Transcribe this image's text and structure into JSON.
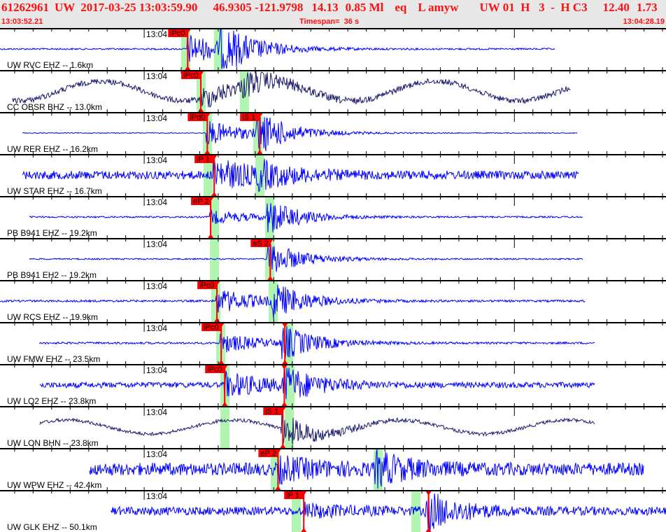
{
  "header": {
    "event_id": "61262961",
    "network": "UW",
    "origin_time": "2017-03-25 13:03:59.90",
    "lat_lon": "46.9305 -121.9798",
    "depth": "14.13",
    "magnitude": "0.85 Ml",
    "event_type": "eq",
    "location_flag": "L amyw",
    "solution": "UW 01  H   3  -  H C3",
    "value1": "12.40",
    "value2": "1.73",
    "start_time": "13:03:52.21",
    "timespan": "Timespan=  36 s",
    "end_time": "13:04:28.19"
  },
  "time_axis": {
    "start": "13:03:52.21",
    "end": "13:04:28.19",
    "major_label": "13:04"
  },
  "colors": {
    "header_text": "#ff1010",
    "trace_hf": "#0000ff",
    "trace_lp": "#1c1c6e",
    "pick": "#ff0000",
    "window": "#b0f5b0"
  },
  "traces": [
    {
      "label": "UW RVC EHZ -- 1.6km",
      "picks": [
        {
          "label": "iPc0",
          "time": "13:04:02.35"
        }
      ]
    },
    {
      "label": "CC OBSR BHZ -- 13.0km",
      "picks": [
        {
          "label": "iPc0",
          "time": "13:04:03.06"
        }
      ]
    },
    {
      "label": "UW RER EHZ -- 16.2km",
      "picks": [
        {
          "label": "iPd0",
          "time": "13:04:03.41"
        },
        {
          "label": "iS 1",
          "time": "13:04:06.24"
        }
      ]
    },
    {
      "label": "UW STAR EHZ -- 16.7km",
      "picks": [
        {
          "label": "iP 1",
          "time": "13:04:03.78"
        }
      ]
    },
    {
      "label": "PB B941 EHZ -- 19.2km",
      "picks": [
        {
          "label": "eP 2",
          "time": "13:04:03.59"
        }
      ]
    },
    {
      "label": "PB B941 EH2 -- 19.2km",
      "picks": [
        {
          "label": "eS 2",
          "time": "13:04:06.81"
        }
      ]
    },
    {
      "label": "UW RCS EHZ -- 19.9km",
      "picks": [
        {
          "label": "iPc0",
          "time": "13:04:03.93"
        }
      ]
    },
    {
      "label": "UW FMW EHZ -- 23.5km",
      "picks": [
        {
          "label": "iPc0",
          "time": "13:04:04.16"
        },
        {
          "label": "",
          "time": "13:04:07.60"
        }
      ]
    },
    {
      "label": "UW LQ2 EHZ -- 23.8km",
      "picks": [
        {
          "label": "iPc0",
          "time": "13:04:04.35"
        },
        {
          "label": "",
          "time": "13:04:07.57"
        }
      ]
    },
    {
      "label": "UW LON BHN -- 23.8km",
      "picks": [
        {
          "label": "iS 1",
          "time": "13:04:07.49"
        }
      ]
    },
    {
      "label": "UW WPW EHZ -- 42.4km",
      "picks": [
        {
          "label": "eP 2",
          "time": "13:04:07.23"
        }
      ]
    },
    {
      "label": "UW GLK EHZ -- 50.1km",
      "picks": [
        {
          "label": "iP 1",
          "time": "13:04:08.62"
        },
        {
          "label": "",
          "time": "13:04:15.36"
        }
      ]
    }
  ]
}
